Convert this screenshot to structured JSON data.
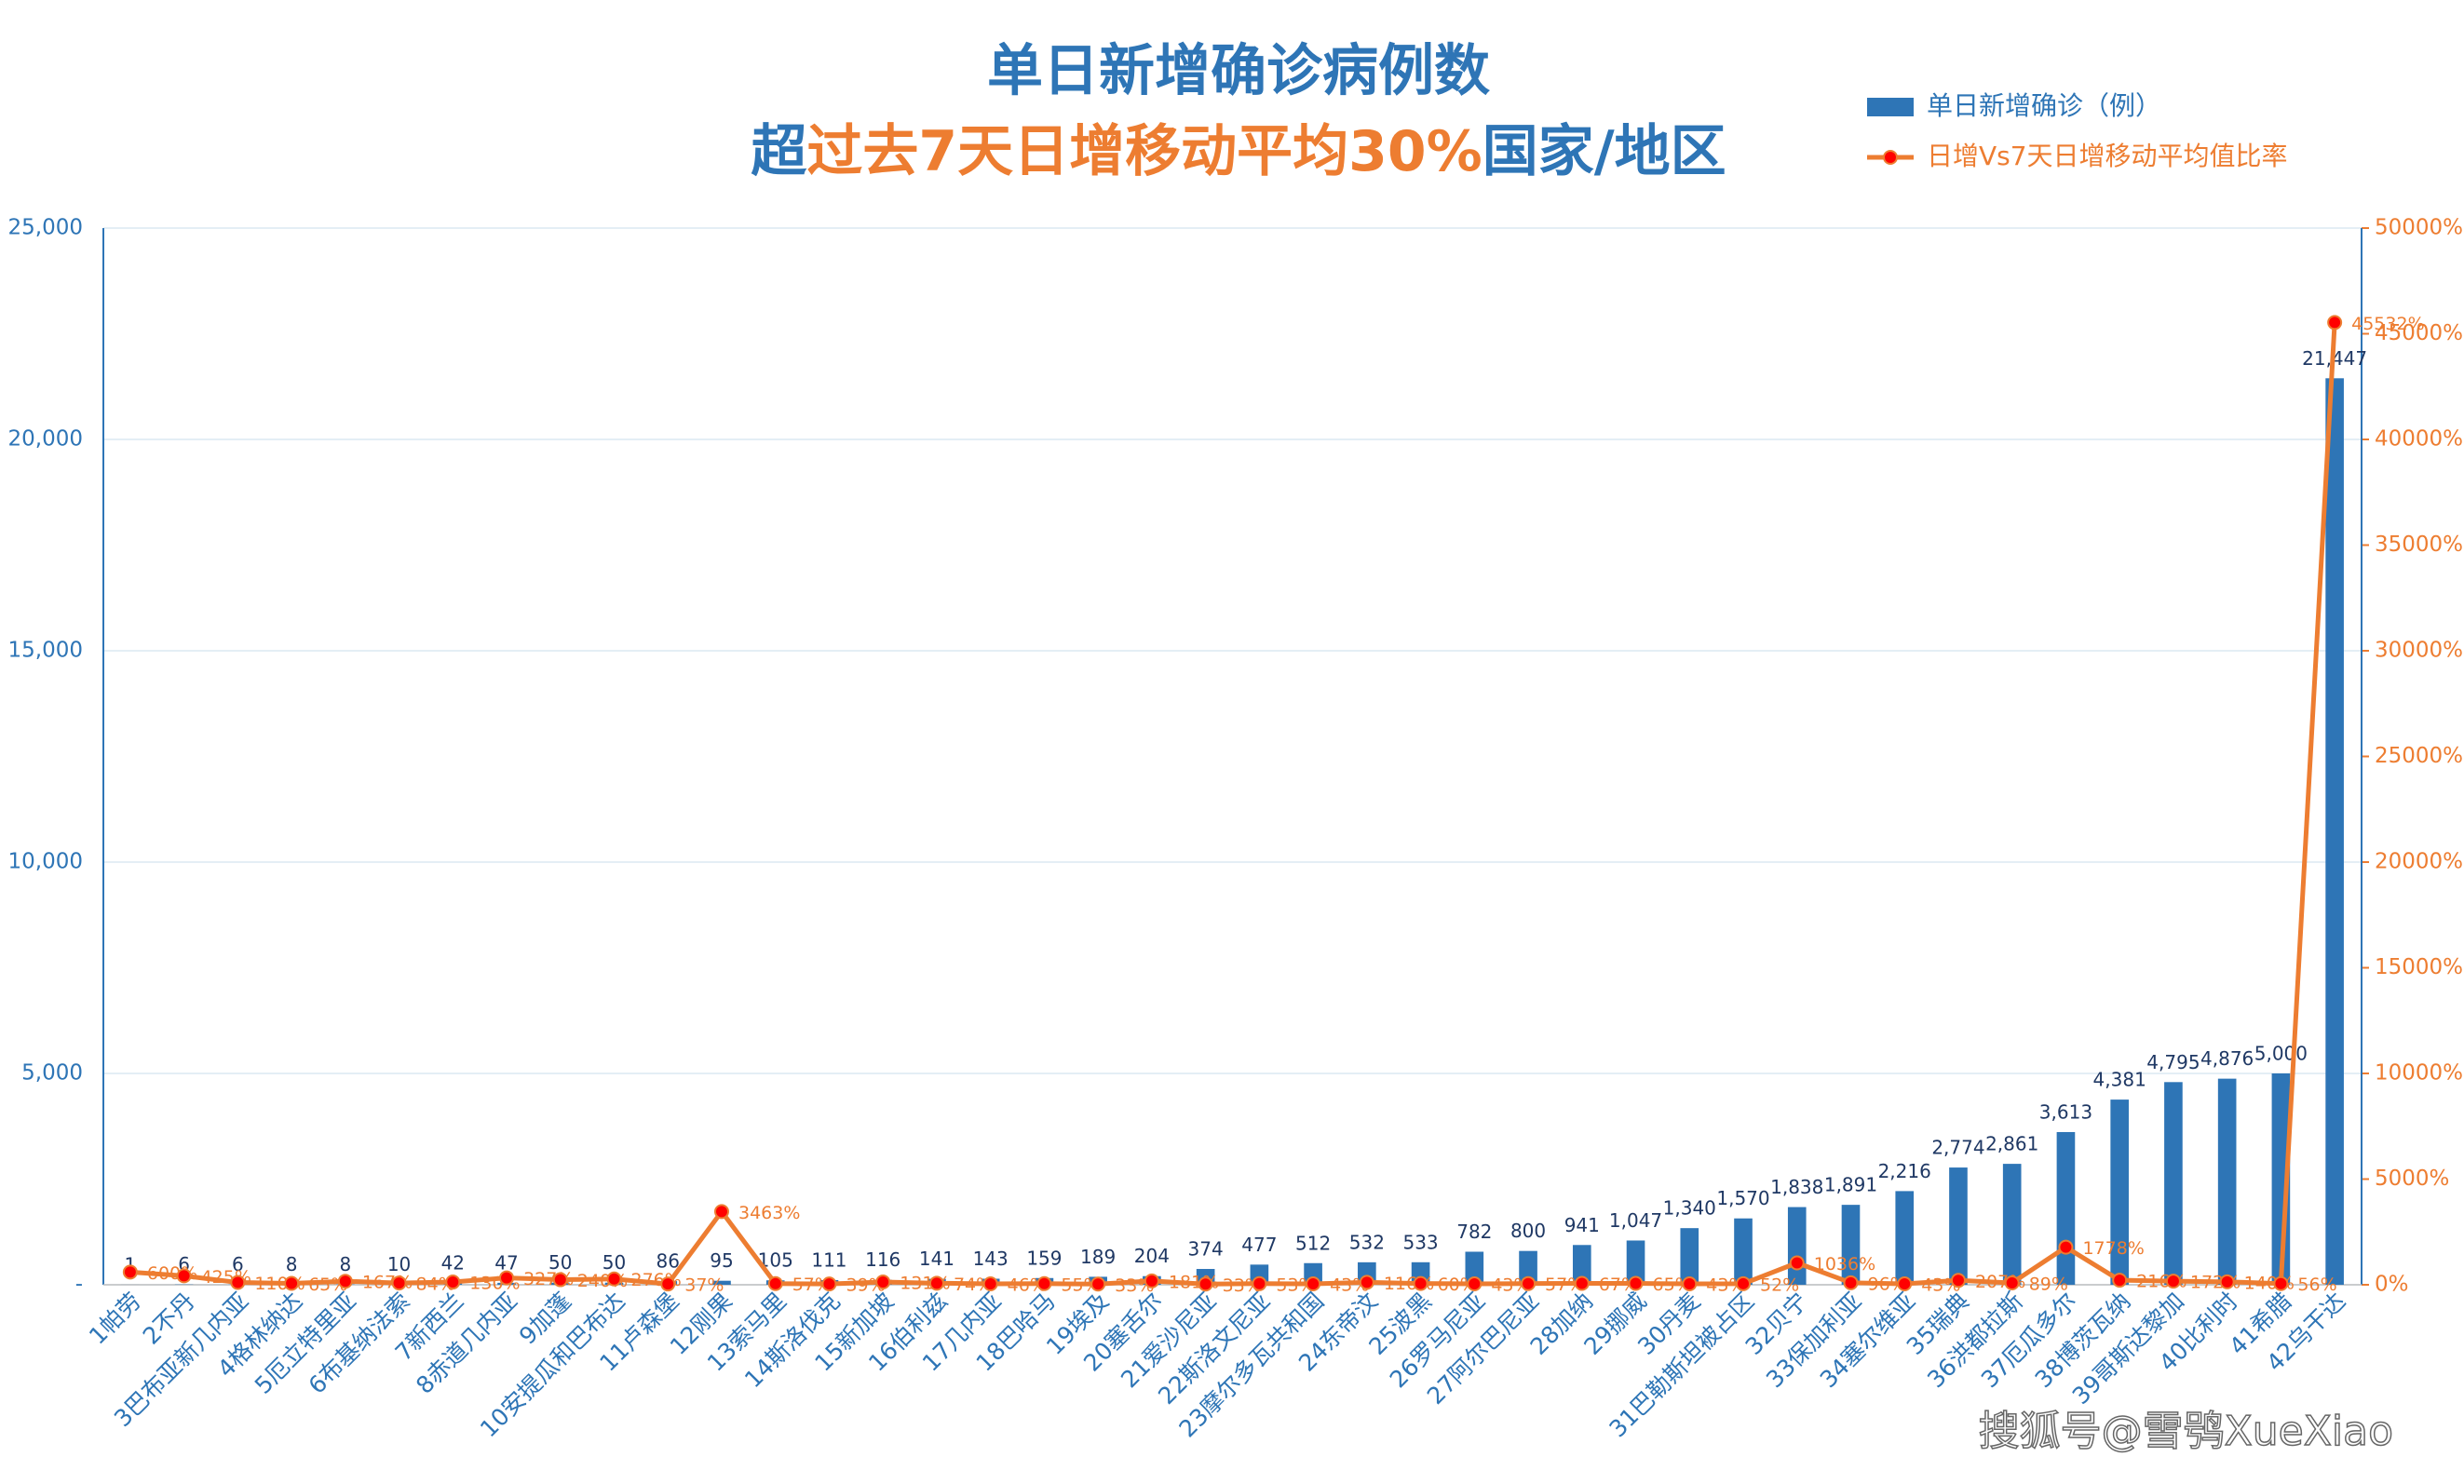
{
  "chart_data": {
    "type": "bar_line",
    "title": "单日新增确诊病例数",
    "subtitle_parts": [
      "超",
      "过去7天日增移动平均30%",
      "国家/地区"
    ],
    "subtitle_colors": [
      "#2e75b6",
      "#ed7d31",
      "#2e75b6"
    ],
    "title_color": "#2e75b6",
    "watermark": "搜狐号@雪鸮XueXiao",
    "categories": [
      "1帕劳",
      "2不丹",
      "3巴布亚新几内亚",
      "4格林纳达",
      "5厄立特里亚",
      "6布基纳法索",
      "7新西兰",
      "8赤道几内亚",
      "9加蓬",
      "10安提瓜和巴布达",
      "11卢森堡",
      "12刚果",
      "13索马里",
      "14斯洛伐克",
      "15新加坡",
      "16伯利兹",
      "17几内亚",
      "18巴哈马",
      "19埃及",
      "20塞舌尔",
      "21爱沙尼亚",
      "22斯洛文尼亚",
      "23摩尔多瓦共和国",
      "24东帝汶",
      "25波黑",
      "26罗马尼亚",
      "27阿尔巴尼亚",
      "28加纳",
      "29挪威",
      "30丹麦",
      "31巴勒斯坦被占区",
      "32贝宁",
      "33保加利亚",
      "34塞尔维亚",
      "35瑞典",
      "36洪都拉斯",
      "37厄瓜多尔",
      "38博茨瓦纳",
      "39哥斯达黎加",
      "40比利时",
      "41希腊",
      "42乌干达"
    ],
    "series": [
      {
        "name": "单日新增确诊（例）",
        "color": "#2e75b6",
        "kind": "bar",
        "values": [
          1,
          6,
          6,
          8,
          8,
          10,
          42,
          47,
          50,
          50,
          86,
          95,
          105,
          111,
          116,
          141,
          143,
          159,
          189,
          204,
          374,
          477,
          512,
          532,
          533,
          782,
          800,
          941,
          1047,
          1340,
          1570,
          1838,
          1891,
          2216,
          2774,
          2861,
          3613,
          4381,
          4795,
          4876,
          5000,
          21447
        ],
        "value_labels": [
          "1",
          "6",
          "6",
          "8",
          "8",
          "10",
          "42",
          "47",
          "50",
          "50",
          "86",
          "95",
          "105",
          "111",
          "116",
          "141",
          "143",
          "159",
          "189",
          "204",
          "374",
          "477",
          "512",
          "532",
          "533",
          "782",
          "800",
          "941",
          "1,047",
          "1,340",
          "1,570",
          "1,838",
          "1,891",
          "2,216",
          "2,774",
          "2,861",
          "3,613",
          "4,381",
          "4,795",
          "4,876",
          "5,000",
          "21,447"
        ]
      },
      {
        "name": "日增Vs7天日增移动平均值比率",
        "color": "#ed7d31",
        "marker_color": "#ff0000",
        "kind": "line",
        "axis": "y2",
        "values": [
          600,
          425,
          110,
          65,
          167,
          84,
          130,
          327,
          240,
          276,
          37,
          3463,
          57,
          39,
          131,
          74,
          46,
          55,
          33,
          181,
          33,
          53,
          43,
          116,
          60,
          43,
          57,
          67,
          65,
          43,
          52,
          1036,
          96,
          43,
          207,
          89,
          1778,
          216,
          172,
          140,
          56,
          45532
        ],
        "value_labels": [
          "600%",
          "425%",
          "110%",
          "65%",
          "167%",
          "84%",
          "130%",
          "327%",
          "240%",
          "276%",
          "37%",
          "3463%",
          "57%",
          "39%",
          "131%",
          "74%",
          "46%",
          "55%",
          "33%",
          "181%",
          "33%",
          "53%",
          "43%",
          "116%",
          "60%",
          "43%",
          "57%",
          "67%",
          "65%",
          "43%",
          "52%",
          "1036%",
          "96%",
          "43%",
          "207%",
          "89%",
          "1778%",
          "216%",
          "172%",
          "140%",
          "56%",
          "45532%"
        ]
      }
    ],
    "ylim": [
      0,
      25000
    ],
    "yticks": [
      {
        "value": 0,
        "label": "-"
      },
      {
        "value": 5000,
        "label": "5,000"
      },
      {
        "value": 10000,
        "label": "10,000"
      },
      {
        "value": 15000,
        "label": "15,000"
      },
      {
        "value": 20000,
        "label": "20,000"
      },
      {
        "value": 25000,
        "label": "25,000"
      }
    ],
    "y2lim": [
      0,
      50000
    ],
    "y2ticks": [
      {
        "value": 0,
        "label": "0%"
      },
      {
        "value": 5000,
        "label": "5000%"
      },
      {
        "value": 10000,
        "label": "10000%"
      },
      {
        "value": 15000,
        "label": "15000%"
      },
      {
        "value": 20000,
        "label": "20000%"
      },
      {
        "value": 25000,
        "label": "25000%"
      },
      {
        "value": 30000,
        "label": "30000%"
      },
      {
        "value": 35000,
        "label": "35000%"
      },
      {
        "value": 40000,
        "label": "40000%"
      },
      {
        "value": 45000,
        "label": "45000%"
      },
      {
        "value": 50000,
        "label": "50000%"
      }
    ],
    "grid": true,
    "legend": "top-right"
  }
}
